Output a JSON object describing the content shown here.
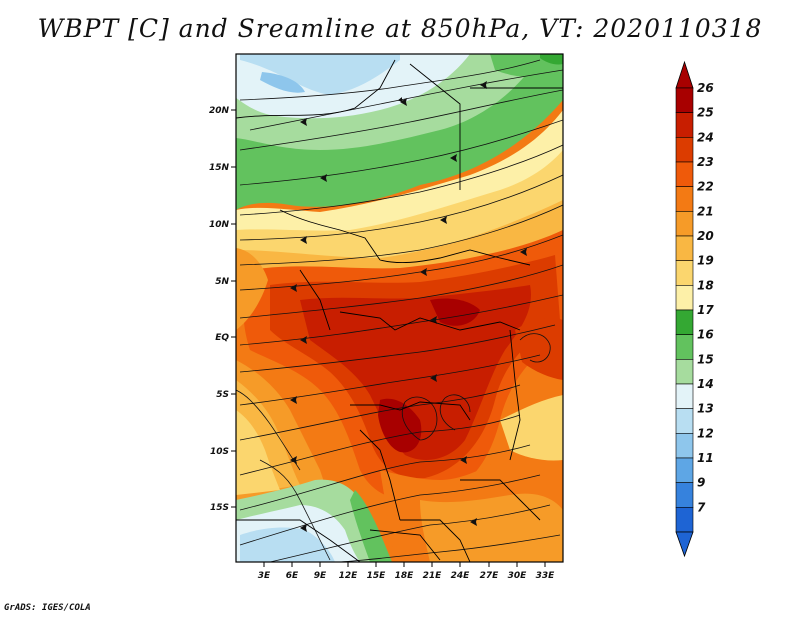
{
  "title": "WBPT [C] and Sreamline at 850hPa, VT: 2020110318",
  "credit": "GrADS: IGES/COLA",
  "map": {
    "lat_labels": [
      "20N",
      "15N",
      "10N",
      "5N",
      "EQ",
      "5S",
      "10S",
      "15S"
    ],
    "lon_labels": [
      "3E",
      "6E",
      "9E",
      "12E",
      "15E",
      "18E",
      "21E",
      "24E",
      "27E",
      "30E",
      "33E"
    ]
  },
  "colorbar": {
    "labels": [
      "26",
      "25",
      "24",
      "23",
      "22",
      "21",
      "20",
      "19",
      "18",
      "17",
      "16",
      "15",
      "14",
      "13",
      "12",
      "11",
      "9",
      "7"
    ],
    "colors": [
      "#a80000",
      "#c81e00",
      "#dc3c00",
      "#ef5a0a",
      "#f37a14",
      "#f69b28",
      "#f9b743",
      "#fbd66e",
      "#fdf0a8",
      "#34a833",
      "#62c25e",
      "#a6dc9e",
      "#e3f3f8",
      "#b8def2",
      "#8ec6ec",
      "#5ea6e5",
      "#3682dd",
      "#1e64d4"
    ]
  }
}
